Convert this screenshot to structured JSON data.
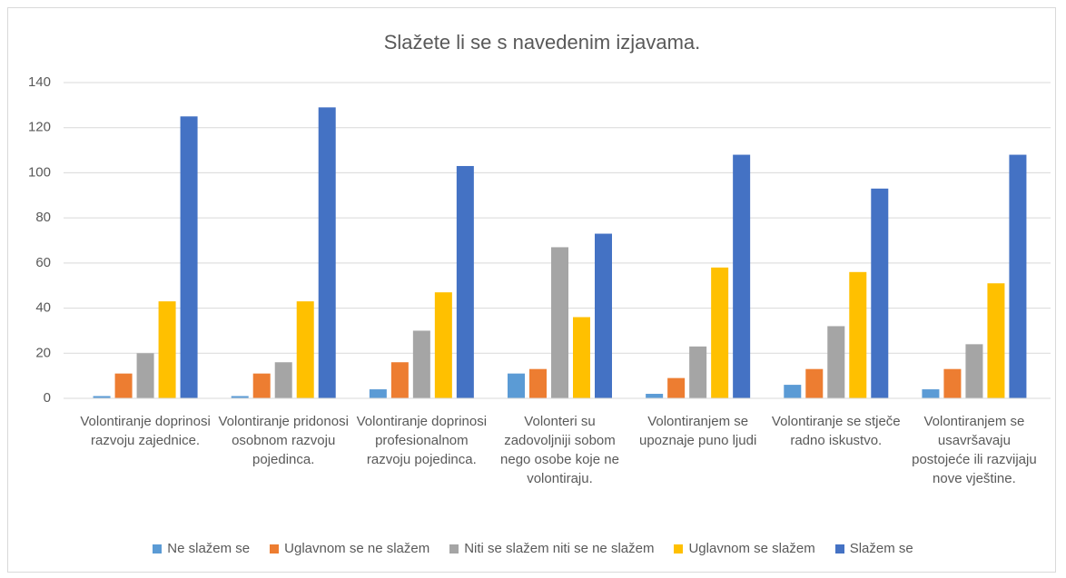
{
  "chart_data": {
    "type": "bar",
    "title": "Slažete li se s navedenim izjavama.",
    "categories": [
      "Volontiranje doprinosi razvoju zajednice.",
      "Volontiranje pridonosi osobnom razvoju pojedinca.",
      "Volontiranje doprinosi profesionalnom razvoju pojedinca.",
      "Volonteri su zadovoljniji sobom nego osobe koje ne volontiraju.",
      "Volontiranjem se upoznaje puno ljudi",
      "Volontiranje se stječe radno iskustvo.",
      "Volontiranjem se usavršavaju postojeće ili razvijaju nove vještine."
    ],
    "series": [
      {
        "name": "Ne slažem se",
        "color": "#5b9bd5",
        "values": [
          1,
          1,
          4,
          11,
          2,
          6,
          4
        ]
      },
      {
        "name": "Uglavnom se ne slažem",
        "color": "#ed7d31",
        "values": [
          11,
          11,
          16,
          13,
          9,
          13,
          13
        ]
      },
      {
        "name": "Niti se slažem niti se ne slažem",
        "color": "#a5a5a5",
        "values": [
          20,
          16,
          30,
          67,
          23,
          32,
          24
        ]
      },
      {
        "name": "Uglavnom se slažem",
        "color": "#ffc000",
        "values": [
          43,
          43,
          47,
          36,
          58,
          56,
          51
        ]
      },
      {
        "name": "Slažem se",
        "color": "#4472c4",
        "values": [
          125,
          129,
          103,
          73,
          108,
          93,
          108
        ]
      }
    ],
    "ylim": [
      0,
      140
    ],
    "yticks": [
      0,
      20,
      40,
      60,
      80,
      100,
      120,
      140
    ],
    "grid": true,
    "legend": "bottom"
  }
}
